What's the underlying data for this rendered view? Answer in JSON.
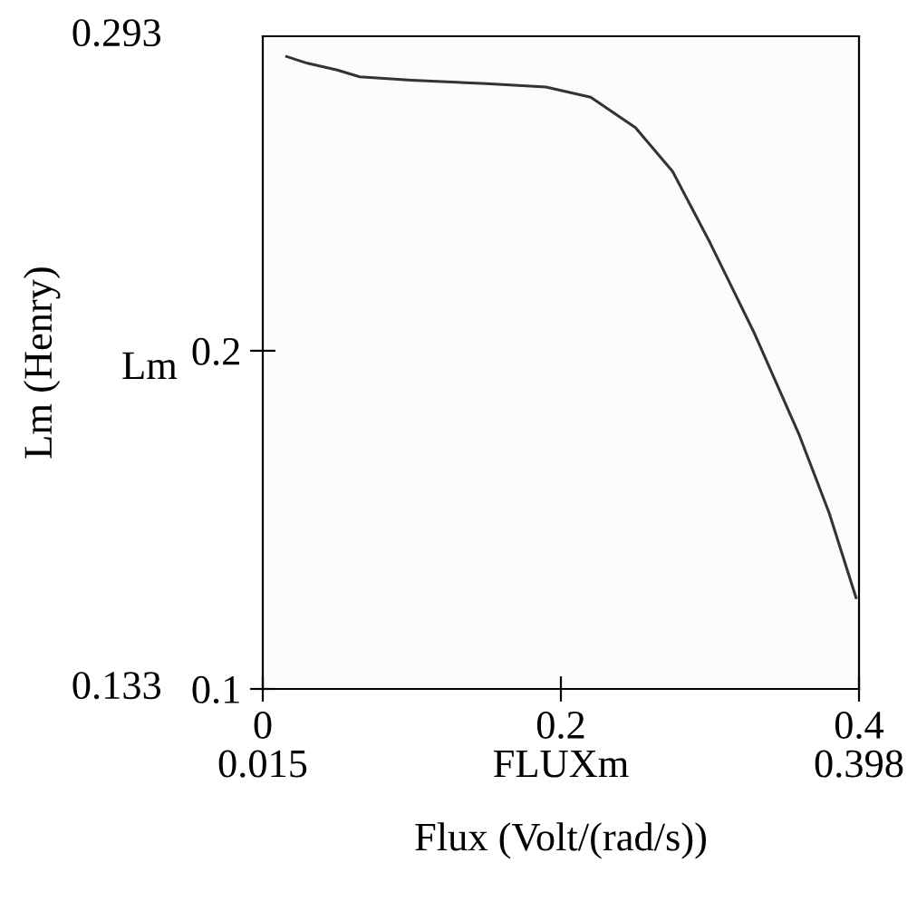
{
  "chart_data": {
    "type": "line",
    "xlabel": "Flux (Volt/(rad/s))",
    "ylabel": "Lm (Henry)",
    "x": [
      0.016,
      0.03,
      0.05,
      0.065,
      0.1,
      0.15,
      0.19,
      0.22,
      0.25,
      0.275,
      0.3,
      0.31,
      0.33,
      0.36,
      0.38,
      0.398
    ],
    "series": [
      {
        "color": "#333333",
        "values": [
          0.287,
          0.285,
          0.283,
          0.281,
          0.28,
          0.279,
          0.278,
          0.275,
          0.266,
          0.253,
          0.232,
          0.223,
          0.205,
          0.175,
          0.152,
          0.127
        ]
      }
    ],
    "xlim": [
      0,
      0.4
    ],
    "ylim": [
      0.1,
      0.293
    ],
    "xticks": [
      0,
      0.2,
      0.4
    ],
    "yticks": [
      0.1,
      0.2
    ],
    "annotations": [
      "0.293",
      "0.133",
      "Lm",
      "0.015",
      "0.398",
      "FLUXm"
    ],
    "grid": false,
    "legend": false
  }
}
